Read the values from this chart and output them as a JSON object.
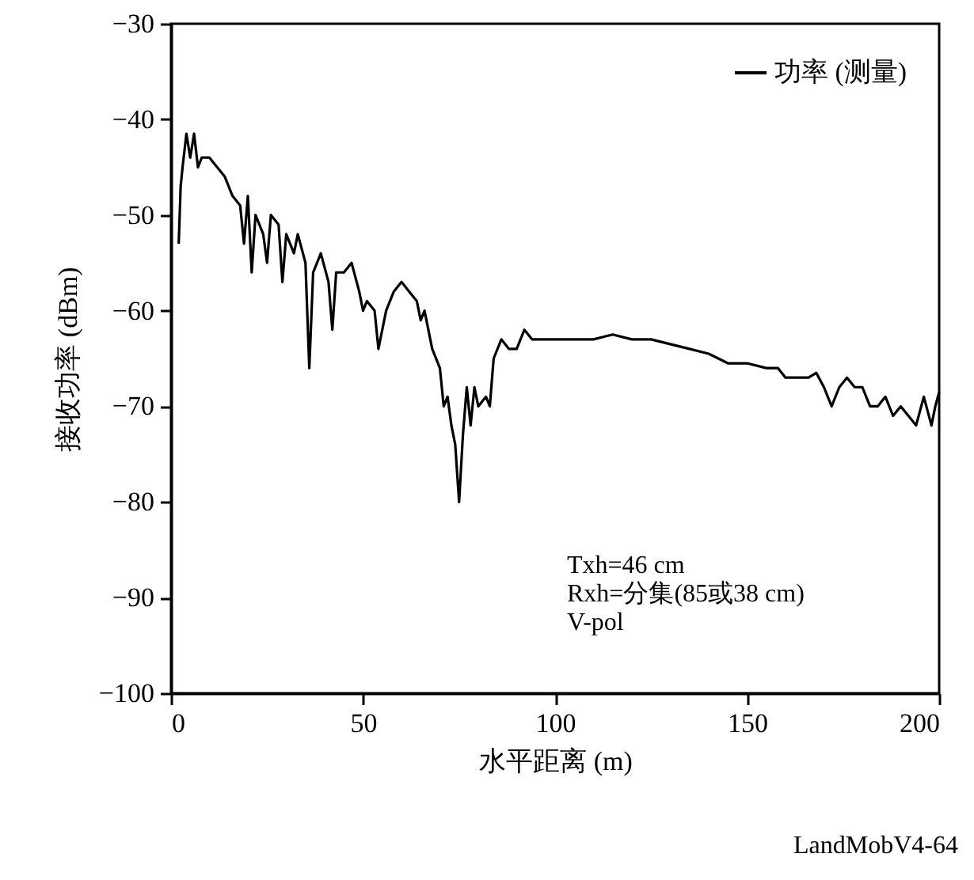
{
  "chart_data": {
    "type": "line",
    "xlabel": "水平距离 (m)",
    "ylabel": "接收功率 (dBm)",
    "xlim": [
      0,
      200
    ],
    "xticks": [
      0,
      50,
      100,
      150,
      200
    ],
    "ylim": [
      -100,
      -30
    ],
    "yticks": [
      -100,
      -90,
      -80,
      -70,
      -60,
      -50,
      -40,
      -30
    ],
    "grid": false,
    "legend": "top right",
    "marker": "none",
    "line_style": "solid",
    "annotations": [
      "Txh=46 cm",
      "Rxh=分集(85或38 cm)",
      "V-pol",
      "LandMobV4-64"
    ],
    "x": [
      2,
      2.5,
      3,
      4,
      5,
      6,
      7,
      8,
      10,
      12,
      14,
      16,
      18,
      19,
      20,
      21,
      22,
      24,
      25,
      26,
      28,
      29,
      30,
      32,
      33,
      35,
      36,
      37,
      39,
      41,
      42,
      43,
      45,
      47,
      49,
      50,
      51,
      53,
      54,
      55,
      56,
      58,
      60,
      62,
      64,
      65,
      66,
      68,
      70,
      71,
      72,
      73,
      74,
      75,
      76,
      77,
      78,
      79,
      80,
      82,
      83,
      84,
      86,
      88,
      90,
      92,
      94,
      96,
      98,
      100,
      105,
      110,
      115,
      120,
      125,
      130,
      135,
      140,
      145,
      150,
      155,
      158,
      160,
      163,
      166,
      168,
      170,
      172,
      174,
      176,
      178,
      180,
      182,
      184,
      186,
      188,
      190,
      192,
      194,
      196,
      198,
      199,
      200
    ],
    "series": [
      {
        "name": "功率 (测量)",
        "color": "#000000",
        "values": [
          -53,
          -47,
          -45,
          -41.5,
          -44,
          -41.5,
          -45,
          -44,
          -44,
          -45,
          -46,
          -48,
          -49,
          -53,
          -48,
          -56,
          -50,
          -52,
          -55,
          -50,
          -51,
          -57,
          -52,
          -54,
          -52,
          -55,
          -66,
          -56,
          -54,
          -57,
          -62,
          -56,
          -56,
          -55,
          -58,
          -60,
          -59,
          -60,
          -64,
          -62,
          -60,
          -58,
          -57,
          -58,
          -59,
          -61,
          -60,
          -64,
          -66,
          -70,
          -69,
          -72,
          -74,
          -80,
          -73,
          -68,
          -72,
          -68,
          -70,
          -69,
          -70,
          -65,
          -63,
          -64,
          -64,
          -62,
          -63,
          -63,
          -63,
          -63,
          -63,
          -63,
          -62.5,
          -63,
          -63,
          -63.5,
          -64,
          -64.5,
          -65.5,
          -65.5,
          -66,
          -66,
          -67,
          -67,
          -67,
          -66.5,
          -68,
          -70,
          -68,
          -67,
          -68,
          -68,
          -70,
          -70,
          -69,
          -71,
          -70,
          -71,
          -72,
          -69,
          -72,
          -70,
          -68.5
        ]
      }
    ]
  }
}
